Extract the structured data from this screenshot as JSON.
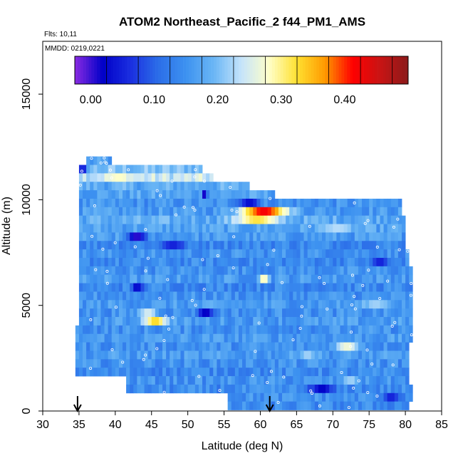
{
  "chart_data": {
    "type": "heatmap",
    "title": "ATOM2 Northeast_Pacific_2 f44_PM1_AMS",
    "flights_label": "Flts: 10,11",
    "mmdd_label": "MMDD: 0219,0221",
    "xlabel": "Latitude (deg N)",
    "ylabel": "Altitude (m)",
    "xlim": [
      30,
      85
    ],
    "ylim": [
      0,
      17500
    ],
    "x_ticks": [
      30,
      35,
      40,
      45,
      50,
      55,
      60,
      65,
      70,
      75,
      80,
      85
    ],
    "y_ticks": [
      0,
      5000,
      10000,
      15000
    ],
    "y_tick_labels": [
      "0",
      "5000",
      "10000",
      "15000"
    ],
    "colorbar": {
      "ticks": [
        0.0,
        0.1,
        0.2,
        0.3,
        0.4
      ],
      "tick_labels": [
        "0.00",
        "0.10",
        "0.20",
        "0.30",
        "0.40"
      ],
      "range": [
        -0.025,
        0.5
      ],
      "colors": [
        "#8a2be2",
        "#0000c8",
        "#1a2ee0",
        "#2b6de8",
        "#3d92f0",
        "#6ab6f5",
        "#c6e4fb",
        "#ffffc8",
        "#ffe030",
        "#ff9a00",
        "#ff0000",
        "#c81414",
        "#8b1a1a"
      ]
    },
    "arrow_markers_x": [
      34.8,
      61.3
    ],
    "rows": [
      {
        "alt": 11850,
        "x0": 36.0,
        "x1": 39.5,
        "value": 0.16
      },
      {
        "alt": 11450,
        "x0": 35.0,
        "x1": 52.0,
        "value": 0.2
      },
      {
        "alt": 11050,
        "x0": 35.0,
        "x1": 53.5,
        "value": 0.24
      },
      {
        "alt": 10650,
        "x0": 35.0,
        "x1": 58.5,
        "value": 0.18
      },
      {
        "alt": 10250,
        "x0": 35.0,
        "x1": 62.0,
        "value": 0.17
      },
      {
        "alt": 9850,
        "x0": 35.0,
        "x1": 79.5,
        "value": 0.15
      },
      {
        "alt": 9450,
        "x0": 35.0,
        "x1": 79.5,
        "value": 0.16
      },
      {
        "alt": 9050,
        "x0": 35.0,
        "x1": 80.0,
        "value": 0.18
      },
      {
        "alt": 8650,
        "x0": 35.0,
        "x1": 80.0,
        "value": 0.17
      },
      {
        "alt": 8250,
        "x0": 35.0,
        "x1": 80.0,
        "value": 0.16
      },
      {
        "alt": 7850,
        "x0": 35.0,
        "x1": 80.0,
        "value": 0.14
      },
      {
        "alt": 7450,
        "x0": 35.0,
        "x1": 80.5,
        "value": 0.15
      },
      {
        "alt": 7050,
        "x0": 35.0,
        "x1": 80.5,
        "value": 0.14
      },
      {
        "alt": 6650,
        "x0": 35.0,
        "x1": 81.0,
        "value": 0.15
      },
      {
        "alt": 6250,
        "x0": 35.0,
        "x1": 81.0,
        "value": 0.16
      },
      {
        "alt": 5850,
        "x0": 35.0,
        "x1": 81.0,
        "value": 0.14
      },
      {
        "alt": 5450,
        "x0": 35.0,
        "x1": 81.0,
        "value": 0.15
      },
      {
        "alt": 5050,
        "x0": 35.0,
        "x1": 81.0,
        "value": 0.16
      },
      {
        "alt": 4650,
        "x0": 35.0,
        "x1": 81.0,
        "value": 0.15
      },
      {
        "alt": 4250,
        "x0": 35.0,
        "x1": 81.0,
        "value": 0.16
      },
      {
        "alt": 3850,
        "x0": 34.5,
        "x1": 81.0,
        "value": 0.15
      },
      {
        "alt": 3450,
        "x0": 34.5,
        "x1": 81.0,
        "value": 0.16
      },
      {
        "alt": 3050,
        "x0": 34.5,
        "x1": 80.5,
        "value": 0.15
      },
      {
        "alt": 2650,
        "x0": 34.5,
        "x1": 80.5,
        "value": 0.16
      },
      {
        "alt": 2250,
        "x0": 34.5,
        "x1": 80.5,
        "value": 0.15
      },
      {
        "alt": 1850,
        "x0": 34.5,
        "x1": 80.5,
        "value": 0.14
      },
      {
        "alt": 1450,
        "x0": 41.5,
        "x1": 80.5,
        "value": 0.15
      },
      {
        "alt": 1050,
        "x0": 41.5,
        "x1": 81.0,
        "value": 0.14
      },
      {
        "alt": 650,
        "x0": 55.5,
        "x1": 81.0,
        "value": 0.15
      },
      {
        "alt": 250,
        "x0": 55.5,
        "x1": 80.5,
        "value": 0.14
      }
    ],
    "hotspots": [
      {
        "alt": 9450,
        "center": 60.5,
        "width": 7.5,
        "value": 0.42
      },
      {
        "alt": 9050,
        "center": 59.5,
        "width": 7.0,
        "value": 0.32
      },
      {
        "alt": 9850,
        "center": 58.5,
        "width": 3.0,
        "value": 0.03
      },
      {
        "alt": 4250,
        "center": 45.5,
        "width": 4.0,
        "value": 0.33
      },
      {
        "alt": 4650,
        "center": 44.5,
        "width": 3.0,
        "value": 0.25
      },
      {
        "alt": 4650,
        "center": 52.5,
        "width": 2.5,
        "value": 0.01
      },
      {
        "alt": 1250,
        "center": 60.0,
        "width": 5.5,
        "value": 0.01
      },
      {
        "alt": 1050,
        "center": 68.5,
        "width": 4.0,
        "value": 0.02
      },
      {
        "alt": 8250,
        "center": 43.0,
        "width": 3.0,
        "value": 0.0
      },
      {
        "alt": 5850,
        "center": 43.0,
        "width": 1.8,
        "value": 0.02
      },
      {
        "alt": 8650,
        "center": 70.5,
        "width": 5.0,
        "value": 0.23
      },
      {
        "alt": 7850,
        "center": 48.0,
        "width": 4.0,
        "value": 0.05
      },
      {
        "alt": 7050,
        "center": 76.5,
        "width": 3.0,
        "value": 0.05
      },
      {
        "alt": 6250,
        "center": 60.5,
        "width": 1.5,
        "value": 0.3
      },
      {
        "alt": 5050,
        "center": 76.0,
        "width": 4.5,
        "value": 0.22
      },
      {
        "alt": 3050,
        "center": 72.0,
        "width": 4.0,
        "value": 0.27
      },
      {
        "alt": 2650,
        "center": 66.5,
        "width": 3.0,
        "value": 0.22
      },
      {
        "alt": 11450,
        "center": 35.5,
        "width": 1.0,
        "value": -0.01
      },
      {
        "alt": 10250,
        "center": 52.3,
        "width": 0.8,
        "value": 0.01
      },
      {
        "alt": 11050,
        "center": 40.5,
        "width": 4.0,
        "value": 0.28
      },
      {
        "alt": 650,
        "center": 78.0,
        "width": 3.0,
        "value": 0.05
      },
      {
        "alt": 1450,
        "center": 72.5,
        "width": 2.5,
        "value": 0.22
      }
    ]
  }
}
